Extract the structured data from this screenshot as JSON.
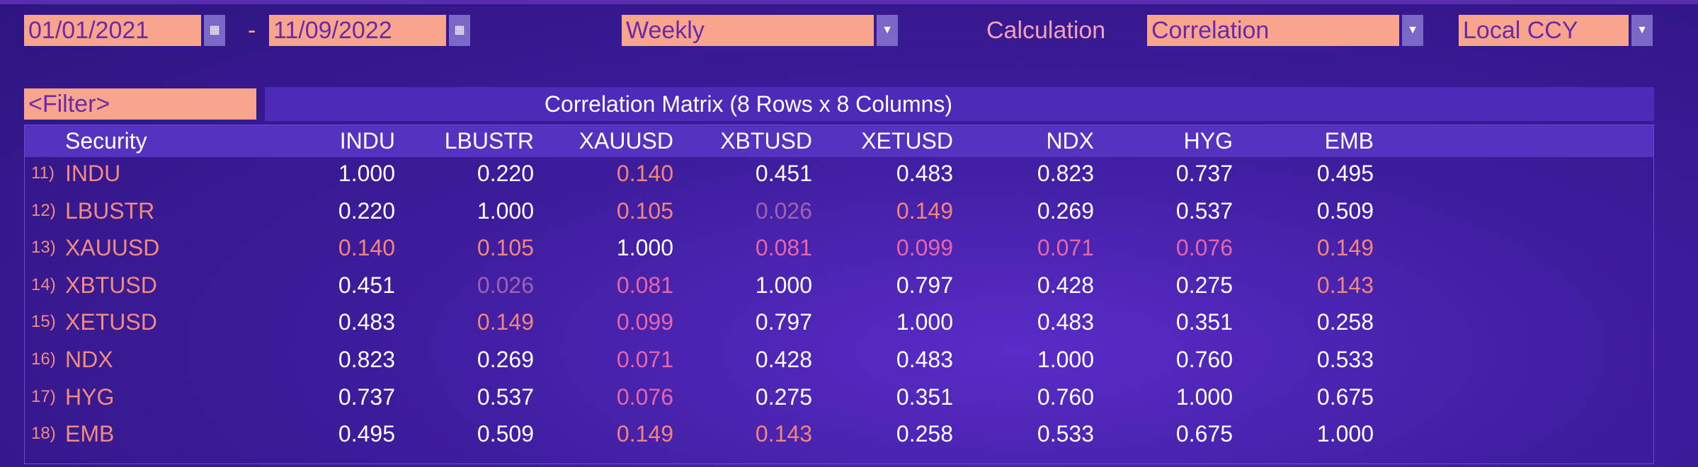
{
  "toolbar": {
    "start_date": "01/01/2021",
    "separator": "-",
    "end_date": "11/09/2022",
    "frequency": "Weekly",
    "calculation_label": "Calculation",
    "calculation": "Correlation",
    "currency": "Local CCY"
  },
  "filter": "<Filter>",
  "table": {
    "title": "Correlation Matrix (8 Rows x 8 Columns)",
    "security_header": "Security",
    "columns": [
      "INDU",
      "LBUSTR",
      "XAUUSD",
      "XBTUSD",
      "XETUSD",
      "NDX",
      "HYG",
      "EMB"
    ],
    "rows": [
      {
        "number": "11)",
        "security": "INDU",
        "values": [
          "1.000",
          "0.220",
          "0.140",
          "0.451",
          "0.483",
          "0.823",
          "0.737",
          "0.495"
        ]
      },
      {
        "number": "12)",
        "security": "LBUSTR",
        "values": [
          "0.220",
          "1.000",
          "0.105",
          "0.026",
          "0.149",
          "0.269",
          "0.537",
          "0.509"
        ]
      },
      {
        "number": "13)",
        "security": "XAUUSD",
        "values": [
          "0.140",
          "0.105",
          "1.000",
          "0.081",
          "0.099",
          "0.071",
          "0.076",
          "0.149"
        ]
      },
      {
        "number": "14)",
        "security": "XBTUSD",
        "values": [
          "0.451",
          "0.026",
          "0.081",
          "1.000",
          "0.797",
          "0.428",
          "0.275",
          "0.143"
        ]
      },
      {
        "number": "15)",
        "security": "XETUSD",
        "values": [
          "0.483",
          "0.149",
          "0.099",
          "0.797",
          "1.000",
          "0.483",
          "0.351",
          "0.258"
        ]
      },
      {
        "number": "16)",
        "security": "NDX",
        "values": [
          "0.823",
          "0.269",
          "0.071",
          "0.428",
          "0.483",
          "1.000",
          "0.760",
          "0.533"
        ]
      },
      {
        "number": "17)",
        "security": "HYG",
        "values": [
          "0.737",
          "0.537",
          "0.076",
          "0.275",
          "0.351",
          "0.760",
          "1.000",
          "0.675"
        ]
      },
      {
        "number": "18)",
        "security": "EMB",
        "values": [
          "0.495",
          "0.509",
          "0.149",
          "0.143",
          "0.258",
          "0.533",
          "0.675",
          "1.000"
        ]
      }
    ]
  }
}
